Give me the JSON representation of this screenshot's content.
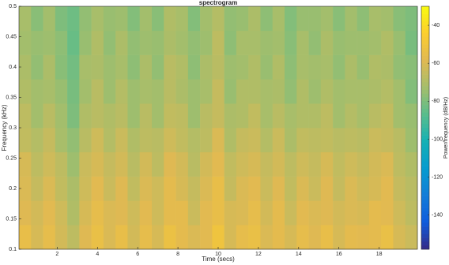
{
  "chart_data": {
    "type": "heatmap",
    "title": "spectrogram",
    "xlabel": "Time (secs)",
    "ylabel": "Frequency (kHz)",
    "colorbar_label": "Power/frequency (dB/Hz)",
    "colormap": "parula",
    "xlim": [
      0.1,
      19.9
    ],
    "xticks": [
      2,
      4,
      6,
      8,
      10,
      12,
      14,
      16,
      18
    ],
    "ylim": [
      0.1,
      0.5
    ],
    "yticks": [
      0.1,
      0.15,
      0.2,
      0.25,
      0.3,
      0.35,
      0.4,
      0.45,
      0.5
    ],
    "clim": [
      -158,
      -30
    ],
    "cticks": [
      -140,
      -120,
      -100,
      -80,
      -60,
      -40
    ],
    "x": [
      0.4,
      1.0,
      1.6,
      2.2,
      2.8,
      3.4,
      4.0,
      4.6,
      5.2,
      5.8,
      6.4,
      7.0,
      7.6,
      8.2,
      8.8,
      9.4,
      10.0,
      10.6,
      11.2,
      11.8,
      12.4,
      13.0,
      13.6,
      14.2,
      14.8,
      15.4,
      16.0,
      16.6,
      17.2,
      17.8,
      18.4,
      19.0,
      19.6
    ],
    "y": [
      0.12,
      0.16,
      0.2,
      0.24,
      0.28,
      0.32,
      0.36,
      0.4,
      0.44,
      0.48
    ],
    "z": [
      [
        -55,
        -61,
        -56,
        -62,
        -67,
        -59,
        -54,
        -60,
        -55,
        -62,
        -56,
        -61,
        -53,
        -57,
        -60,
        -58,
        -51,
        -61,
        -56,
        -54,
        -60,
        -57,
        -61,
        -56,
        -59,
        -55,
        -61,
        -57,
        -58,
        -57,
        -54,
        -61,
        -64
      ],
      [
        -59,
        -62,
        -58,
        -63,
        -70,
        -61,
        -56,
        -60,
        -59,
        -63,
        -58,
        -63,
        -57,
        -57,
        -64,
        -58,
        -55,
        -61,
        -60,
        -56,
        -62,
        -57,
        -64,
        -58,
        -60,
        -59,
        -62,
        -60,
        -61,
        -57,
        -58,
        -63,
        -67
      ],
      [
        -60,
        -65,
        -60,
        -66,
        -71,
        -63,
        -58,
        -64,
        -59,
        -66,
        -60,
        -63,
        -57,
        -61,
        -65,
        -60,
        -55,
        -65,
        -60,
        -58,
        -64,
        -59,
        -66,
        -60,
        -64,
        -59,
        -65,
        -60,
        -63,
        -61,
        -58,
        -65,
        -68
      ],
      [
        -61,
        -67,
        -63,
        -67,
        -74,
        -64,
        -61,
        -65,
        -62,
        -68,
        -62,
        -67,
        -59,
        -62,
        -68,
        -62,
        -58,
        -66,
        -63,
        -61,
        -65,
        -62,
        -67,
        -63,
        -65,
        -61,
        -66,
        -63,
        -65,
        -62,
        -60,
        -67,
        -70
      ],
      [
        -66,
        -69,
        -65,
        -72,
        -76,
        -68,
        -63,
        -69,
        -64,
        -70,
        -67,
        -68,
        -63,
        -66,
        -69,
        -67,
        -60,
        -70,
        -65,
        -64,
        -69,
        -64,
        -71,
        -66,
        -67,
        -66,
        -68,
        -67,
        -68,
        -64,
        -65,
        -68,
        -74
      ],
      [
        -67,
        -73,
        -68,
        -73,
        -80,
        -70,
        -68,
        -70,
        -68,
        -74,
        -68,
        -73,
        -66,
        -67,
        -74,
        -68,
        -65,
        -71,
        -70,
        -66,
        -72,
        -68,
        -72,
        -70,
        -70,
        -67,
        -73,
        -69,
        -72,
        -68,
        -66,
        -73,
        -75
      ],
      [
        -70,
        -73,
        -72,
        -75,
        -81,
        -73,
        -68,
        -74,
        -69,
        -74,
        -72,
        -73,
        -68,
        -71,
        -74,
        -72,
        -65,
        -75,
        -70,
        -70,
        -72,
        -71,
        -76,
        -70,
        -74,
        -70,
        -73,
        -72,
        -72,
        -71,
        -69,
        -73,
        -79
      ],
      [
        -71,
        -76,
        -71,
        -78,
        -82,
        -72,
        -71,
        -74,
        -72,
        -77,
        -71,
        -76,
        -68,
        -70,
        -77,
        -71,
        -68,
        -74,
        -73,
        -70,
        -75,
        -70,
        -77,
        -72,
        -73,
        -72,
        -76,
        -71,
        -75,
        -70,
        -71,
        -76,
        -78
      ],
      [
        -73,
        -75,
        -74,
        -77,
        -84,
        -75,
        -70,
        -76,
        -71,
        -76,
        -74,
        -75,
        -71,
        -73,
        -76,
        -74,
        -67,
        -77,
        -72,
        -72,
        -74,
        -73,
        -78,
        -72,
        -76,
        -71,
        -75,
        -74,
        -74,
        -73,
        -70,
        -75,
        -81
      ],
      [
        -72,
        -78,
        -73,
        -80,
        -83,
        -76,
        -72,
        -75,
        -74,
        -79,
        -73,
        -78,
        -70,
        -72,
        -79,
        -73,
        -69,
        -76,
        -75,
        -71,
        -77,
        -72,
        -79,
        -75,
        -75,
        -73,
        -78,
        -73,
        -77,
        -72,
        -73,
        -78,
        -80
      ]
    ]
  }
}
